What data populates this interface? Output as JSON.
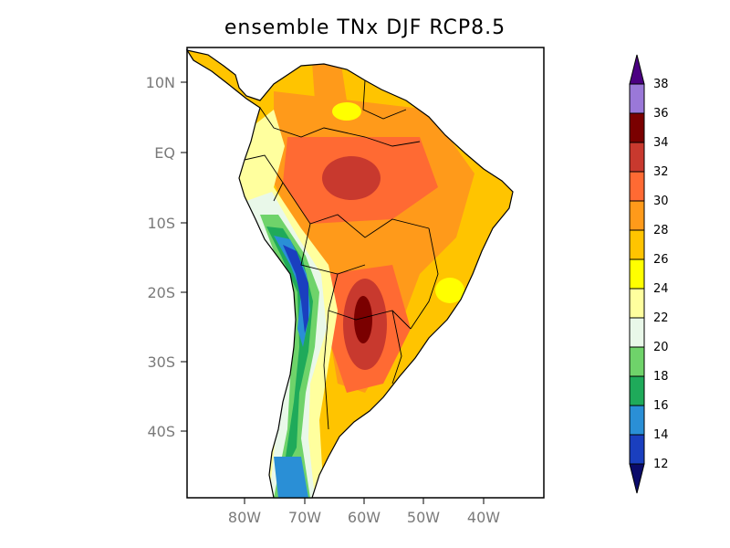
{
  "title": "ensemble TNx DJF RCP8.5",
  "axes": {
    "lat_labels": [
      "10N",
      "EQ",
      "10S",
      "20S",
      "30S",
      "40S"
    ],
    "lon_labels": [
      "80W",
      "70W",
      "60W",
      "50W",
      "40W"
    ]
  },
  "colorbar": {
    "levels": [
      "12",
      "14",
      "16",
      "18",
      "20",
      "22",
      "24",
      "26",
      "28",
      "30",
      "32",
      "34",
      "36",
      "38"
    ],
    "colors": [
      "#1a3fbf",
      "#2a8fd6",
      "#1faa5a",
      "#6fd36a",
      "#e9f8e9",
      "#ffff9e",
      "#ffff00",
      "#ffc400",
      "#ff9a1a",
      "#ff6a33",
      "#c8392e",
      "#7a0000",
      "#9a78d8"
    ],
    "below_color": "#0b0b6b",
    "above_color": "#4b0082"
  },
  "map_colors": {
    "ocean": "#ffffff",
    "warm_base": "#ffc400",
    "orange": "#ff9a1a",
    "red_orange": "#ff6a33",
    "dark_red": "#c8392e",
    "maroon": "#7a0000",
    "cool_blue": "#1a3fbf",
    "mid_blue": "#2a8fd6",
    "green": "#1faa5a",
    "light_green": "#6fd36a",
    "pale": "#e9f8e9",
    "light_yellow": "#ffff9e",
    "yellow": "#ffff00",
    "border": "#000000"
  }
}
